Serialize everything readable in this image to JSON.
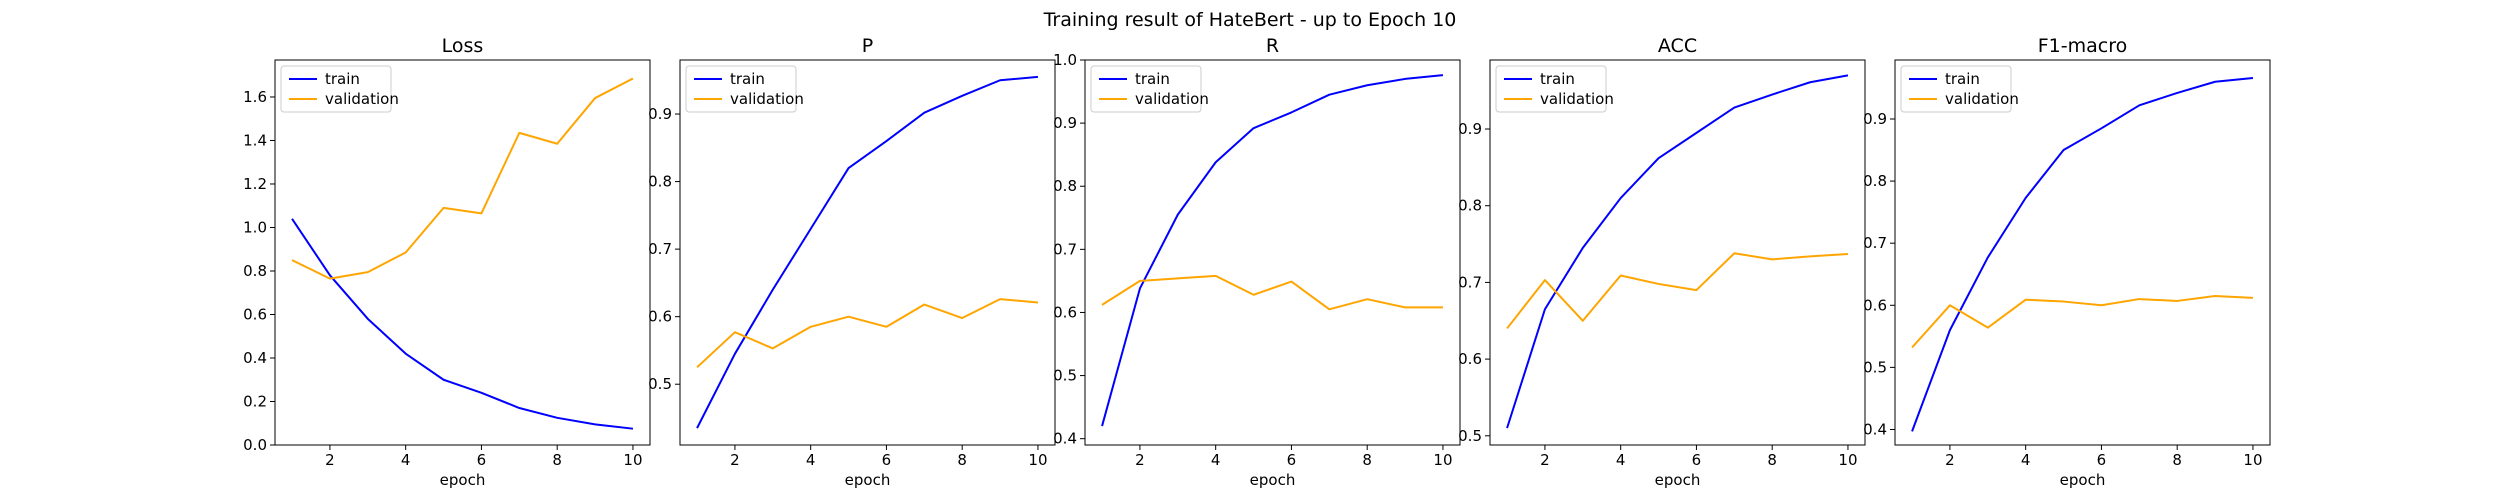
{
  "figure": {
    "suptitle": "Training result of HateBert - up to Epoch 10"
  },
  "chart_data": [
    {
      "type": "line",
      "title": "Loss",
      "xlabel": "epoch",
      "ylabel": "",
      "x": [
        1,
        2,
        3,
        4,
        5,
        6,
        7,
        8,
        9,
        10
      ],
      "xlim": [
        0.55,
        10.45
      ],
      "xticks": [
        2,
        4,
        6,
        8,
        10
      ],
      "ylim": [
        0.0,
        1.77
      ],
      "yticks": [
        0.0,
        0.2,
        0.4,
        0.6,
        0.8,
        1.0,
        1.2,
        1.4,
        1.6
      ],
      "ytick_labels": [
        "0.0",
        "0.2",
        "0.4",
        "0.6",
        "0.8",
        "1.0",
        "1.2",
        "1.4",
        "1.6"
      ],
      "grid": false,
      "legend": "upper-left",
      "series": [
        {
          "name": "train",
          "color": "#0000ff",
          "values": [
            1.04,
            0.78,
            0.58,
            0.42,
            0.3,
            0.24,
            0.17,
            0.125,
            0.095,
            0.075
          ]
        },
        {
          "name": "validation",
          "color": "#ffa500",
          "values": [
            0.85,
            0.765,
            0.795,
            0.885,
            1.09,
            1.065,
            1.435,
            1.385,
            1.595,
            1.685
          ]
        }
      ]
    },
    {
      "type": "line",
      "title": "P",
      "xlabel": "epoch",
      "ylabel": "",
      "x": [
        1,
        2,
        3,
        4,
        5,
        6,
        7,
        8,
        9,
        10
      ],
      "xlim": [
        0.55,
        10.45
      ],
      "xticks": [
        2,
        4,
        6,
        8,
        10
      ],
      "ylim": [
        0.41,
        0.98
      ],
      "yticks": [
        0.5,
        0.6,
        0.7,
        0.8,
        0.9
      ],
      "ytick_labels": [
        "0.5",
        "0.6",
        "0.7",
        "0.8",
        "0.9"
      ],
      "grid": false,
      "legend": "upper-left",
      "series": [
        {
          "name": "train",
          "color": "#0000ff",
          "values": [
            0.435,
            0.545,
            0.64,
            0.73,
            0.82,
            0.86,
            0.902,
            0.927,
            0.95,
            0.955
          ]
        },
        {
          "name": "validation",
          "color": "#ffa500",
          "values": [
            0.525,
            0.577,
            0.553,
            0.585,
            0.6,
            0.585,
            0.618,
            0.598,
            0.626,
            0.621
          ]
        }
      ]
    },
    {
      "type": "line",
      "title": "R",
      "xlabel": "epoch",
      "ylabel": "",
      "x": [
        1,
        2,
        3,
        4,
        5,
        6,
        7,
        8,
        9,
        10
      ],
      "xlim": [
        0.55,
        10.45
      ],
      "xticks": [
        2,
        4,
        6,
        8,
        10
      ],
      "ylim": [
        0.39,
        1.0
      ],
      "yticks": [
        0.4,
        0.5,
        0.6,
        0.7,
        0.8,
        0.9,
        1.0
      ],
      "ytick_labels": [
        "0.4",
        "0.5",
        "0.6",
        "0.7",
        "0.8",
        "0.9",
        "1.0"
      ],
      "grid": false,
      "legend": "upper-left",
      "series": [
        {
          "name": "train",
          "color": "#0000ff",
          "values": [
            0.42,
            0.638,
            0.755,
            0.838,
            0.892,
            0.917,
            0.945,
            0.96,
            0.97,
            0.976
          ]
        },
        {
          "name": "validation",
          "color": "#ffa500",
          "values": [
            0.612,
            0.65,
            0.654,
            0.658,
            0.628,
            0.649,
            0.605,
            0.621,
            0.608,
            0.608
          ]
        }
      ]
    },
    {
      "type": "line",
      "title": "ACC",
      "xlabel": "epoch",
      "ylabel": "",
      "x": [
        1,
        2,
        3,
        4,
        5,
        6,
        7,
        8,
        9,
        10
      ],
      "xlim": [
        0.55,
        10.45
      ],
      "xticks": [
        2,
        4,
        6,
        8,
        10
      ],
      "ylim": [
        0.488,
        0.99
      ],
      "yticks": [
        0.5,
        0.6,
        0.7,
        0.8,
        0.9
      ],
      "ytick_labels": [
        "0.5",
        "0.6",
        "0.7",
        "0.8",
        "0.9"
      ],
      "grid": false,
      "legend": "upper-left",
      "series": [
        {
          "name": "train",
          "color": "#0000ff",
          "values": [
            0.51,
            0.665,
            0.745,
            0.81,
            0.862,
            0.895,
            0.928,
            0.945,
            0.961,
            0.97
          ]
        },
        {
          "name": "validation",
          "color": "#ffa500",
          "values": [
            0.64,
            0.703,
            0.65,
            0.709,
            0.698,
            0.69,
            0.738,
            0.73,
            0.734,
            0.737
          ]
        }
      ]
    },
    {
      "type": "line",
      "title": "F1-macro",
      "xlabel": "epoch",
      "ylabel": "",
      "x": [
        1,
        2,
        3,
        4,
        5,
        6,
        7,
        8,
        9,
        10
      ],
      "xlim": [
        0.55,
        10.45
      ],
      "xticks": [
        2,
        4,
        6,
        8,
        10
      ],
      "ylim": [
        0.375,
        0.995
      ],
      "yticks": [
        0.4,
        0.5,
        0.6,
        0.7,
        0.8,
        0.9
      ],
      "ytick_labels": [
        "0.4",
        "0.5",
        "0.6",
        "0.7",
        "0.8",
        "0.9"
      ],
      "grid": false,
      "legend": "upper-left",
      "series": [
        {
          "name": "train",
          "color": "#0000ff",
          "values": [
            0.397,
            0.56,
            0.677,
            0.773,
            0.85,
            0.885,
            0.922,
            0.942,
            0.96,
            0.966
          ]
        },
        {
          "name": "validation",
          "color": "#ffa500",
          "values": [
            0.532,
            0.6,
            0.564,
            0.609,
            0.606,
            0.6,
            0.61,
            0.607,
            0.615,
            0.612
          ]
        }
      ]
    }
  ]
}
